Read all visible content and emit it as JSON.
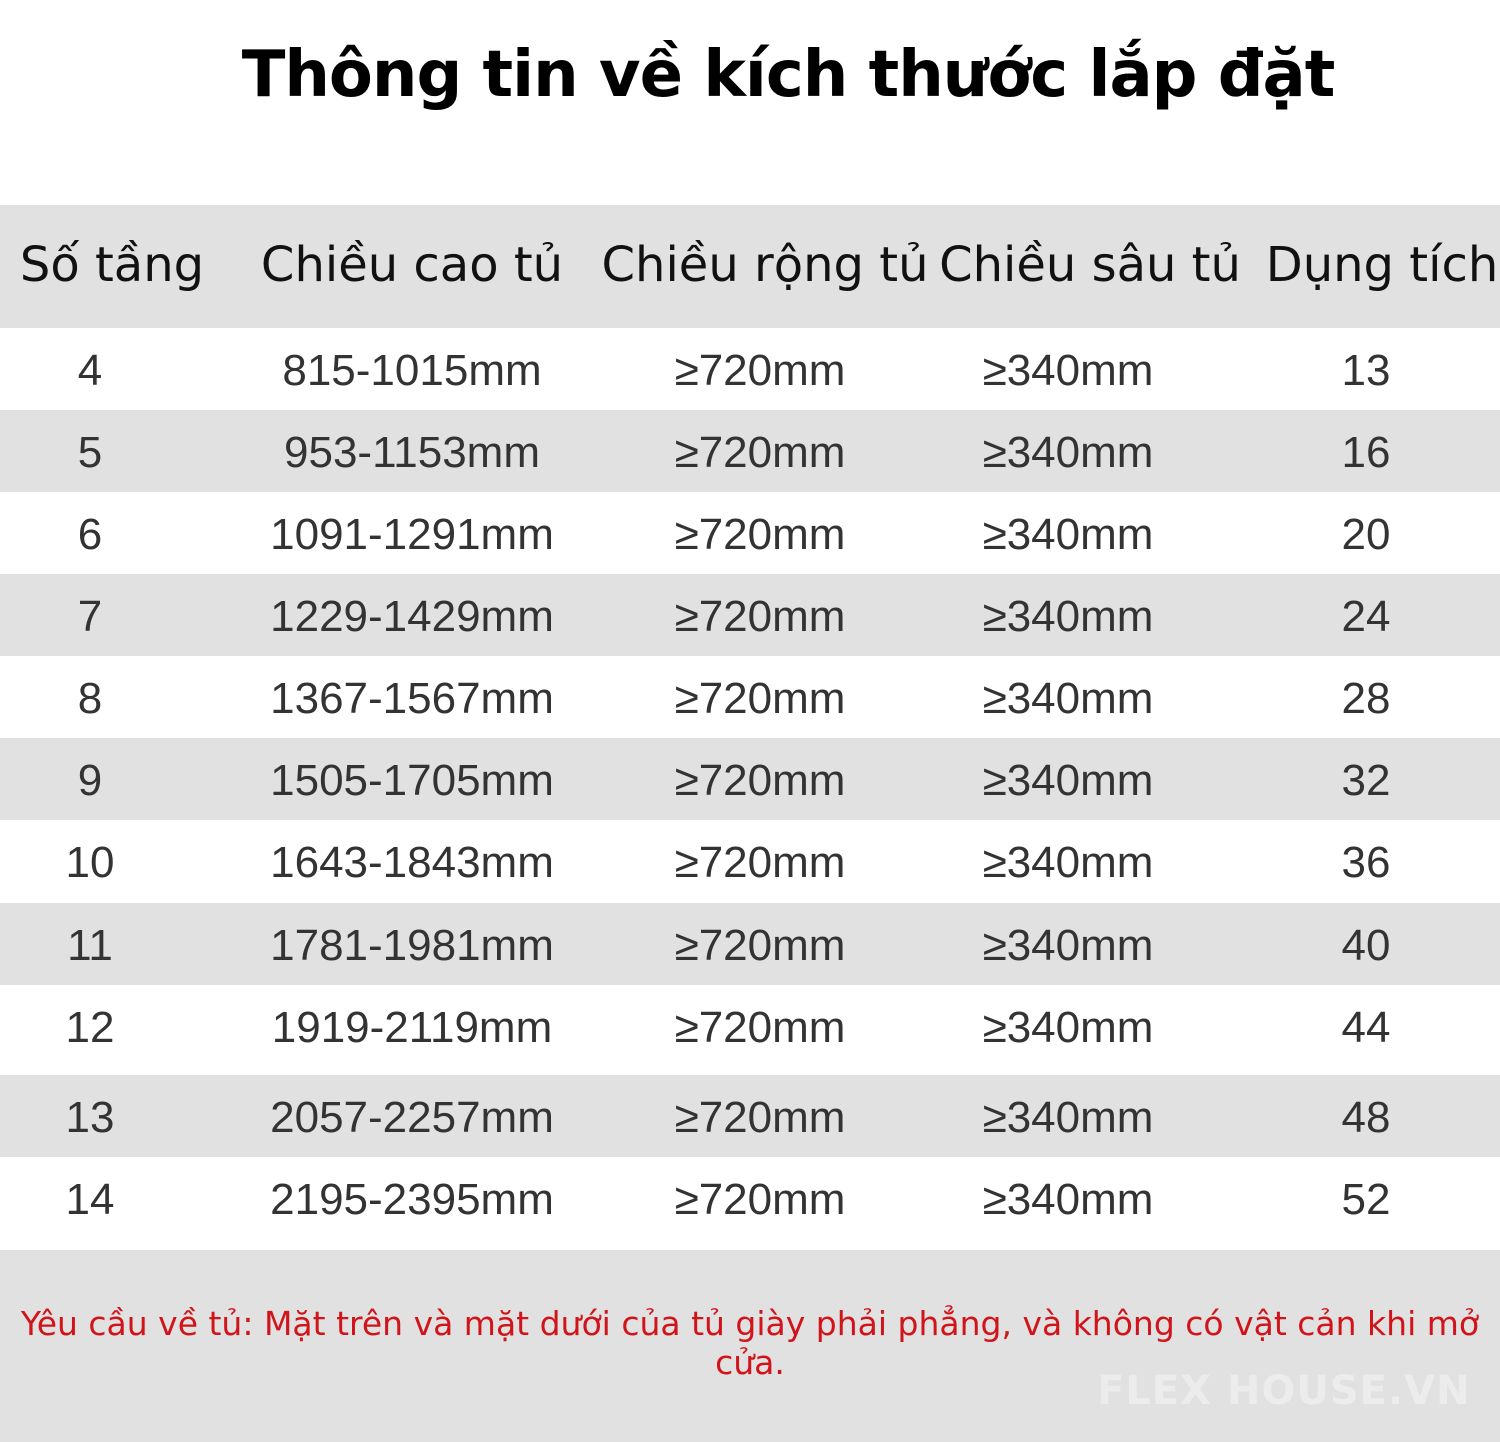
{
  "title": "Thông tin về kích thước lắp đặt",
  "table": {
    "headers": [
      "Số tầng",
      "Chiều cao tủ",
      "Chiều rộng tủ",
      "Chiều sâu tủ",
      "Dụng tích"
    ],
    "rows": [
      [
        "4",
        "815-1015mm",
        "≥720mm",
        "≥340mm",
        "13"
      ],
      [
        "5",
        "953-1153mm",
        "≥720mm",
        "≥340mm",
        "16"
      ],
      [
        "6",
        "1091-1291mm",
        "≥720mm",
        "≥340mm",
        "20"
      ],
      [
        "7",
        "1229-1429mm",
        "≥720mm",
        "≥340mm",
        "24"
      ],
      [
        "8",
        "1367-1567mm",
        "≥720mm",
        "≥340mm",
        "28"
      ],
      [
        "9",
        "1505-1705mm",
        "≥720mm",
        "≥340mm",
        "32"
      ],
      [
        "10",
        "1643-1843mm",
        "≥720mm",
        "≥340mm",
        "36"
      ],
      [
        "11",
        "1781-1981mm",
        "≥720mm",
        "≥340mm",
        "40"
      ],
      [
        "12",
        "1919-2119mm",
        "≥720mm",
        "≥340mm",
        "44"
      ],
      [
        "13",
        "2057-2257mm",
        "≥720mm",
        "≥340mm",
        "48"
      ],
      [
        "14",
        "2195-2395mm",
        "≥720mm",
        "≥340mm",
        "52"
      ]
    ]
  },
  "note": "Yêu cầu về tủ: Mặt trên và mặt dưới của tủ giày phải phẳng, và không có vật cản khi mở cửa.",
  "watermark": "FLEX HOUSE.VN",
  "colors": {
    "band_gray": "#e1e1e1",
    "note_red": "#d0141a"
  }
}
